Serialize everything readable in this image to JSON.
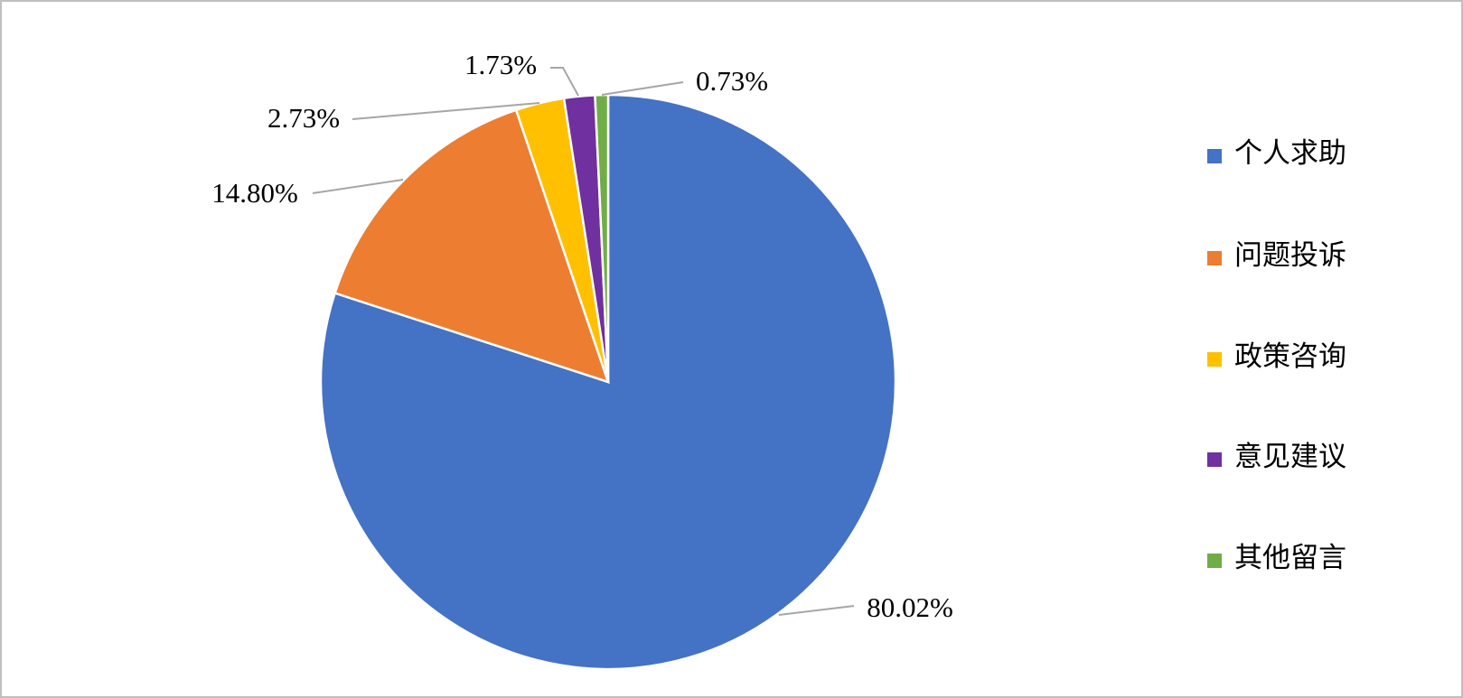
{
  "chart_data": {
    "type": "pie",
    "categories": [
      "个人求助",
      "问题投诉",
      "政策咨询",
      "意见建议",
      "其他留言"
    ],
    "values": [
      80.02,
      14.8,
      2.73,
      1.73,
      0.73
    ],
    "value_labels": [
      "80.02%",
      "14.80%",
      "2.73%",
      "1.73%",
      "0.73%"
    ],
    "colors": [
      "#4472c4",
      "#ed7d31",
      "#ffc000",
      "#7030a0",
      "#70ad47"
    ],
    "legend": "right"
  }
}
